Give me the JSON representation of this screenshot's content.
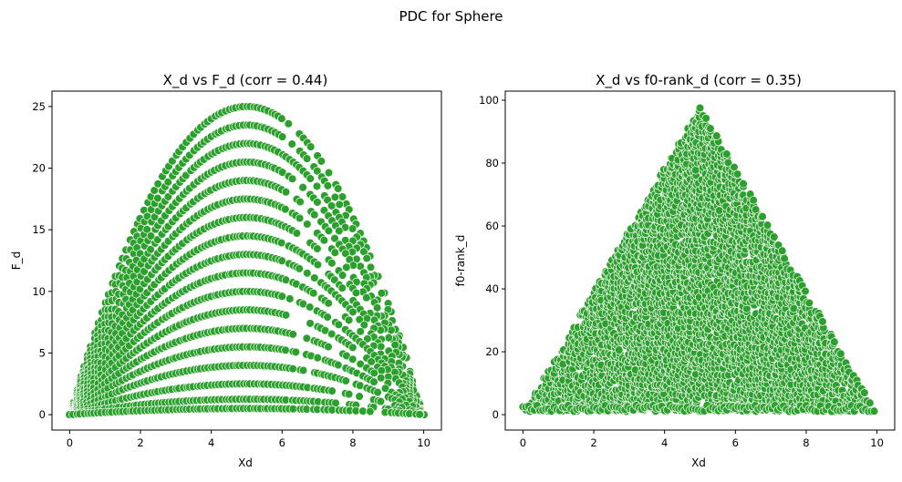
{
  "figure": {
    "suptitle": "PDC for Sphere"
  },
  "colors": {
    "marker_fill": "#2ca02c",
    "marker_edge": "#ffffff",
    "axes": "#000000",
    "background": "#ffffff"
  },
  "chart_data": [
    {
      "type": "scatter",
      "title": "X_d vs F_d (corr = 0.44)",
      "xlabel": "Xd",
      "ylabel": "F_d",
      "xlim": [
        -0.5,
        10.5
      ],
      "ylim": [
        -1.25,
        26.25
      ],
      "xticks": [
        0,
        2,
        4,
        6,
        8,
        10
      ],
      "yticks": [
        0,
        5,
        10,
        15,
        20,
        25
      ],
      "grid": false,
      "legend": "none",
      "pattern": {
        "form": "y = c * x * (10 - x)",
        "x_range": [
          0,
          10
        ],
        "x_step": 0.1,
        "c_values": [
          1.0,
          0.94,
          0.88,
          0.82,
          0.76,
          0.7,
          0.64,
          0.58,
          0.52,
          0.46,
          0.4,
          0.34,
          0.28,
          0.22,
          0.16,
          0.1,
          0.05,
          0.02
        ],
        "y_max": 25
      }
    },
    {
      "type": "scatter",
      "title": "X_d vs f0-rank_d (corr = 0.35)",
      "xlabel": "Xd",
      "ylabel": "f0-rank_d",
      "xlim": [
        -0.5,
        10.5
      ],
      "ylim": [
        -4.9,
        102.9
      ],
      "xticks": [
        0,
        2,
        4,
        6,
        8,
        10
      ],
      "yticks": [
        0,
        20,
        40,
        60,
        80,
        100
      ],
      "grid": false,
      "legend": "none",
      "pattern": {
        "form": "triangular fill: 0 <= y <= 98 * (1 - |x - 5| / 5)",
        "x_range": [
          0,
          10
        ],
        "apex": [
          5,
          98
        ],
        "y_min": 0,
        "y_max": 98
      }
    }
  ]
}
